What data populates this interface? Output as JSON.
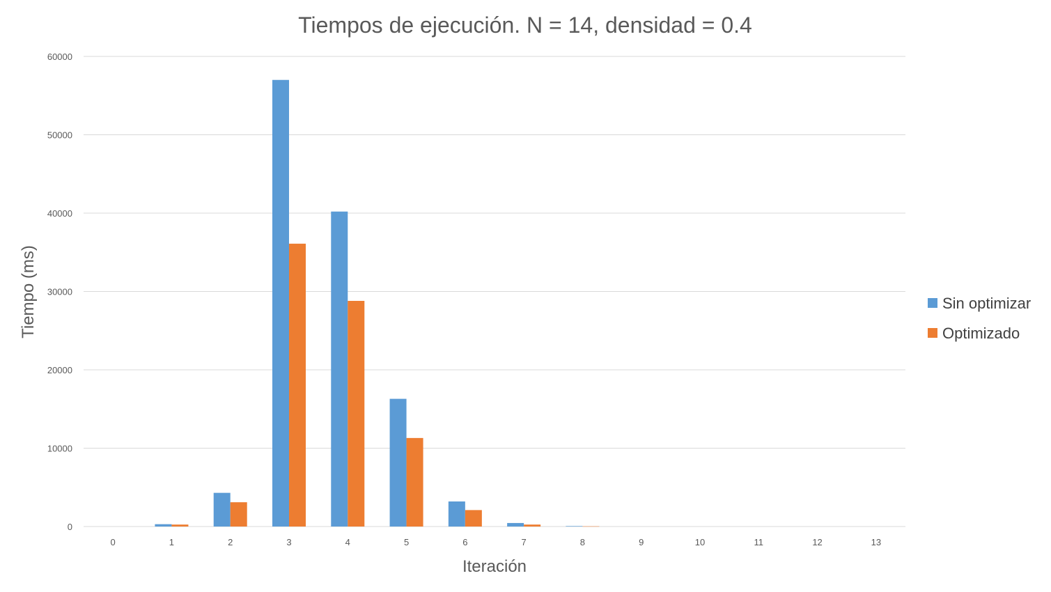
{
  "chart_data": {
    "type": "bar",
    "title": "Tiempos de ejecución. N = 14, densidad = 0.4",
    "xlabel": "Iteración",
    "ylabel": "Tiempo (ms)",
    "categories": [
      "0",
      "1",
      "2",
      "3",
      "4",
      "5",
      "6",
      "7",
      "8",
      "9",
      "10",
      "11",
      "12",
      "13"
    ],
    "series": [
      {
        "name": "Sin optimizar",
        "color": "#5b9bd5",
        "values": [
          0,
          300,
          4300,
          57000,
          40200,
          16300,
          3200,
          450,
          60,
          0,
          0,
          0,
          0,
          0
        ]
      },
      {
        "name": "Optimizado",
        "color": "#ed7d31",
        "values": [
          0,
          250,
          3100,
          36100,
          28800,
          11300,
          2100,
          250,
          30,
          0,
          0,
          0,
          0,
          0
        ]
      }
    ],
    "ylim": [
      0,
      60000
    ],
    "yticks": [
      0,
      10000,
      20000,
      30000,
      40000,
      50000,
      60000
    ],
    "grid": true,
    "legend_position": "right"
  }
}
